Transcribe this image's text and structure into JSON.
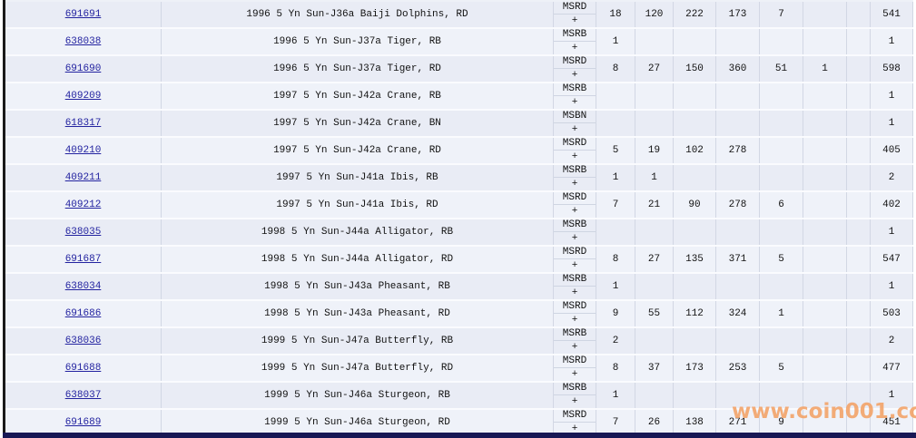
{
  "watermark": {
    "text": "www.coin001.com",
    "color": "#f2a064"
  },
  "colors": {
    "link": "#2323a0",
    "row_odd": "#e9ecf5",
    "row_even": "#eff2f9",
    "grid_line": "#d2d7e4",
    "row_gap": "#fafbfe",
    "left_border": "#1a1a1a",
    "bottom_bar": "#181855",
    "text": "#111111"
  },
  "rows": [
    {
      "id": "691691",
      "description": "1996 5 Yn Sun-J36a Baiji Dolphins, RD",
      "grade": "MSRD",
      "plus": "+",
      "counts": [
        "18",
        "120",
        "222",
        "173",
        "7",
        "",
        ""
      ],
      "total": "541"
    },
    {
      "id": "638038",
      "description": "1996 5 Yn Sun-J37a Tiger, RB",
      "grade": "MSRB",
      "plus": "+",
      "counts": [
        "1",
        "",
        "",
        "",
        "",
        "",
        ""
      ],
      "total": "1"
    },
    {
      "id": "691690",
      "description": "1996 5 Yn Sun-J37a Tiger, RD",
      "grade": "MSRD",
      "plus": "+",
      "counts": [
        "8",
        "27",
        "150",
        "360",
        "51",
        "1",
        ""
      ],
      "total": "598"
    },
    {
      "id": "409209",
      "description": "1997 5 Yn Sun-J42a Crane, RB",
      "grade": "MSRB",
      "plus": "+",
      "counts": [
        "",
        "",
        "",
        "",
        "",
        "",
        ""
      ],
      "total": "1"
    },
    {
      "id": "618317",
      "description": "1997 5 Yn Sun-J42a Crane, BN",
      "grade": "MSBN",
      "plus": "+",
      "counts": [
        "",
        "",
        "",
        "",
        "",
        "",
        ""
      ],
      "total": "1"
    },
    {
      "id": "409210",
      "description": "1997 5 Yn Sun-J42a Crane, RD",
      "grade": "MSRD",
      "plus": "+",
      "counts": [
        "5",
        "19",
        "102",
        "278",
        "",
        "",
        ""
      ],
      "total": "405"
    },
    {
      "id": "409211",
      "description": "1997 5 Yn Sun-J41a Ibis, RB",
      "grade": "MSRB",
      "plus": "+",
      "counts": [
        "1",
        "1",
        "",
        "",
        "",
        "",
        ""
      ],
      "total": "2"
    },
    {
      "id": "409212",
      "description": "1997 5 Yn Sun-J41a Ibis, RD",
      "grade": "MSRD",
      "plus": "+",
      "counts": [
        "7",
        "21",
        "90",
        "278",
        "6",
        "",
        ""
      ],
      "total": "402"
    },
    {
      "id": "638035",
      "description": "1998 5 Yn Sun-J44a Alligator, RB",
      "grade": "MSRB",
      "plus": "+",
      "counts": [
        "",
        "",
        "",
        "",
        "",
        "",
        ""
      ],
      "total": "1"
    },
    {
      "id": "691687",
      "description": "1998 5 Yn Sun-J44a Alligator, RD",
      "grade": "MSRD",
      "plus": "+",
      "counts": [
        "8",
        "27",
        "135",
        "371",
        "5",
        "",
        ""
      ],
      "total": "547"
    },
    {
      "id": "638034",
      "description": "1998 5 Yn Sun-J43a Pheasant, RB",
      "grade": "MSRB",
      "plus": "+",
      "counts": [
        "1",
        "",
        "",
        "",
        "",
        "",
        ""
      ],
      "total": "1"
    },
    {
      "id": "691686",
      "description": "1998 5 Yn Sun-J43a Pheasant, RD",
      "grade": "MSRD",
      "plus": "+",
      "counts": [
        "9",
        "55",
        "112",
        "324",
        "1",
        "",
        ""
      ],
      "total": "503"
    },
    {
      "id": "638036",
      "description": "1999 5 Yn Sun-J47a Butterfly, RB",
      "grade": "MSRB",
      "plus": "+",
      "counts": [
        "2",
        "",
        "",
        "",
        "",
        "",
        ""
      ],
      "total": "2"
    },
    {
      "id": "691688",
      "description": "1999 5 Yn Sun-J47a Butterfly, RD",
      "grade": "MSRD",
      "plus": "+",
      "counts": [
        "8",
        "37",
        "173",
        "253",
        "5",
        "",
        ""
      ],
      "total": "477"
    },
    {
      "id": "638037",
      "description": "1999 5 Yn Sun-J46a Sturgeon, RB",
      "grade": "MSRB",
      "plus": "+",
      "counts": [
        "1",
        "",
        "",
        "",
        "",
        "",
        ""
      ],
      "total": "1"
    },
    {
      "id": "691689",
      "description": "1999 5 Yn Sun-J46a Sturgeon, RD",
      "grade": "MSRD",
      "plus": "+",
      "counts": [
        "7",
        "26",
        "138",
        "271",
        "9",
        "",
        ""
      ],
      "total": "451"
    }
  ]
}
